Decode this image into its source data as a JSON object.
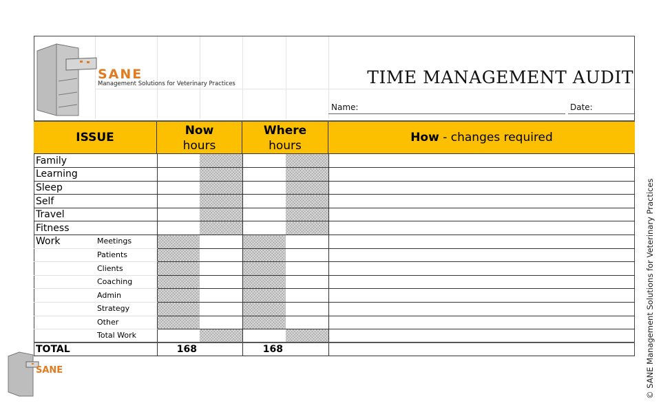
{
  "brand": {
    "name": "SANE",
    "tagline": "Management Solutions for Veterinary Practices",
    "color": "#e07b20"
  },
  "title": "TIME MANAGEMENT AUDIT",
  "name_label": "Name:",
  "date_label": "Date:",
  "header": {
    "issue": "ISSUE",
    "now_bold": "Now",
    "now_sub": "hours",
    "where_bold": "Where",
    "where_sub": "hours",
    "how_bold": "How",
    "how_rest": " - changes required",
    "color": "#fcc000"
  },
  "rows": [
    {
      "label": "Family"
    },
    {
      "label": "Learning"
    },
    {
      "label": "Sleep"
    },
    {
      "label": "Self"
    },
    {
      "label": "Travel"
    },
    {
      "label": "Fitness"
    }
  ],
  "work": {
    "label": "Work",
    "items": [
      "Meetings",
      "Patients",
      "Clients",
      "Coaching",
      "Admin",
      "Strategy",
      "Other"
    ],
    "total_label": "Total Work"
  },
  "total": {
    "label": "TOTAL",
    "now": "168",
    "where": "168"
  },
  "copyright": "© SANE Management Solutions for Veterinary Practices"
}
